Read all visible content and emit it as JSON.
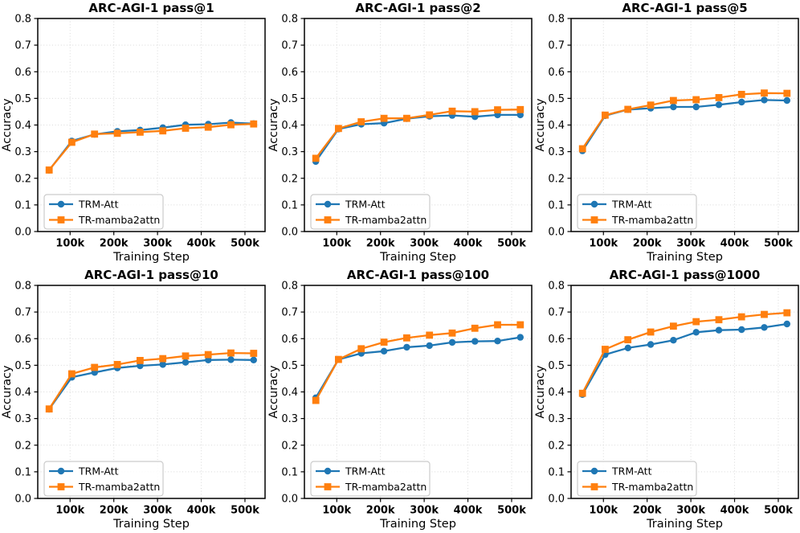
{
  "figure": {
    "xlabel": "Training Step",
    "ylabel": "Accuracy",
    "legend": [
      {
        "label": "TRM-Att",
        "color": "#1f77b4",
        "marker": "circle"
      },
      {
        "label": "TR-mamba2attn",
        "color": "#ff7f0e",
        "marker": "square"
      }
    ],
    "colors": {
      "blue": "#1f77b4",
      "orange": "#ff7f0e",
      "grid": "#bbbbbb",
      "spine": "#000000"
    }
  },
  "chart_data": [
    {
      "type": "line",
      "title": "ARC-AGI-1 pass@1",
      "xlabel": "Training Step",
      "ylabel": "Accuracy",
      "x": [
        52000,
        104000,
        156000,
        208000,
        260000,
        312000,
        364000,
        416000,
        468000,
        520000
      ],
      "xlim": [
        26000,
        546000
      ],
      "ylim": [
        0.0,
        0.8
      ],
      "grid": true,
      "legend_position": "lower left",
      "xticks": [
        {
          "value": 100000,
          "label": "100k"
        },
        {
          "value": 200000,
          "label": "200k"
        },
        {
          "value": 300000,
          "label": "300k"
        },
        {
          "value": 400000,
          "label": "400k"
        },
        {
          "value": 500000,
          "label": "500k"
        }
      ],
      "yticks": [
        {
          "value": 0.0,
          "label": "0.0"
        },
        {
          "value": 0.1,
          "label": "0.1"
        },
        {
          "value": 0.2,
          "label": "0.2"
        },
        {
          "value": 0.3,
          "label": "0.3"
        },
        {
          "value": 0.4,
          "label": "0.4"
        },
        {
          "value": 0.5,
          "label": "0.5"
        },
        {
          "value": 0.6,
          "label": "0.6"
        },
        {
          "value": 0.7,
          "label": "0.7"
        },
        {
          "value": 0.8,
          "label": "0.8"
        }
      ],
      "series": [
        {
          "name": "TRM-Att",
          "color": "#1f77b4",
          "marker": "circle",
          "values": [
            0.23,
            0.34,
            0.365,
            0.376,
            0.381,
            0.39,
            0.401,
            0.403,
            0.409,
            0.405
          ]
        },
        {
          "name": "TR-mamba2attn",
          "color": "#ff7f0e",
          "marker": "square",
          "values": [
            0.231,
            0.335,
            0.366,
            0.369,
            0.373,
            0.378,
            0.388,
            0.392,
            0.401,
            0.404
          ]
        }
      ]
    },
    {
      "type": "line",
      "title": "ARC-AGI-1 pass@2",
      "xlabel": "Training Step",
      "ylabel": "Accuracy",
      "x": [
        52000,
        104000,
        156000,
        208000,
        260000,
        312000,
        364000,
        416000,
        468000,
        520000
      ],
      "xlim": [
        26000,
        546000
      ],
      "ylim": [
        0.0,
        0.8
      ],
      "grid": true,
      "legend_position": "lower left",
      "xticks": [
        {
          "value": 100000,
          "label": "100k"
        },
        {
          "value": 200000,
          "label": "200k"
        },
        {
          "value": 300000,
          "label": "300k"
        },
        {
          "value": 400000,
          "label": "400k"
        },
        {
          "value": 500000,
          "label": "500k"
        }
      ],
      "yticks": [
        {
          "value": 0.0,
          "label": "0.0"
        },
        {
          "value": 0.1,
          "label": "0.1"
        },
        {
          "value": 0.2,
          "label": "0.2"
        },
        {
          "value": 0.3,
          "label": "0.3"
        },
        {
          "value": 0.4,
          "label": "0.4"
        },
        {
          "value": 0.5,
          "label": "0.5"
        },
        {
          "value": 0.6,
          "label": "0.6"
        },
        {
          "value": 0.7,
          "label": "0.7"
        },
        {
          "value": 0.8,
          "label": "0.8"
        }
      ],
      "series": [
        {
          "name": "TRM-Att",
          "color": "#1f77b4",
          "marker": "circle",
          "values": [
            0.263,
            0.385,
            0.403,
            0.407,
            0.424,
            0.433,
            0.436,
            0.431,
            0.438,
            0.438
          ]
        },
        {
          "name": "TR-mamba2attn",
          "color": "#ff7f0e",
          "marker": "square",
          "values": [
            0.275,
            0.387,
            0.412,
            0.425,
            0.425,
            0.438,
            0.452,
            0.45,
            0.457,
            0.458
          ]
        }
      ]
    },
    {
      "type": "line",
      "title": "ARC-AGI-1 pass@5",
      "xlabel": "Training Step",
      "ylabel": "Accuracy",
      "x": [
        52000,
        104000,
        156000,
        208000,
        260000,
        312000,
        364000,
        416000,
        468000,
        520000
      ],
      "xlim": [
        26000,
        546000
      ],
      "ylim": [
        0.0,
        0.8
      ],
      "grid": true,
      "legend_position": "lower left",
      "xticks": [
        {
          "value": 100000,
          "label": "100k"
        },
        {
          "value": 200000,
          "label": "200k"
        },
        {
          "value": 300000,
          "label": "300k"
        },
        {
          "value": 400000,
          "label": "400k"
        },
        {
          "value": 500000,
          "label": "500k"
        }
      ],
      "yticks": [
        {
          "value": 0.0,
          "label": "0.0"
        },
        {
          "value": 0.1,
          "label": "0.1"
        },
        {
          "value": 0.2,
          "label": "0.2"
        },
        {
          "value": 0.3,
          "label": "0.3"
        },
        {
          "value": 0.4,
          "label": "0.4"
        },
        {
          "value": 0.5,
          "label": "0.5"
        },
        {
          "value": 0.6,
          "label": "0.6"
        },
        {
          "value": 0.7,
          "label": "0.7"
        },
        {
          "value": 0.8,
          "label": "0.8"
        }
      ],
      "series": [
        {
          "name": "TRM-Att",
          "color": "#1f77b4",
          "marker": "circle",
          "values": [
            0.303,
            0.435,
            0.458,
            0.463,
            0.468,
            0.468,
            0.476,
            0.486,
            0.494,
            0.492
          ]
        },
        {
          "name": "TR-mamba2attn",
          "color": "#ff7f0e",
          "marker": "square",
          "values": [
            0.311,
            0.437,
            0.459,
            0.475,
            0.492,
            0.495,
            0.503,
            0.515,
            0.52,
            0.519
          ]
        }
      ]
    },
    {
      "type": "line",
      "title": "ARC-AGI-1 pass@10",
      "xlabel": "Training Step",
      "ylabel": "Accuracy",
      "x": [
        52000,
        104000,
        156000,
        208000,
        260000,
        312000,
        364000,
        416000,
        468000,
        520000
      ],
      "xlim": [
        26000,
        546000
      ],
      "ylim": [
        0.0,
        0.8
      ],
      "grid": true,
      "legend_position": "lower left",
      "xticks": [
        {
          "value": 100000,
          "label": "100k"
        },
        {
          "value": 200000,
          "label": "200k"
        },
        {
          "value": 300000,
          "label": "300k"
        },
        {
          "value": 400000,
          "label": "400k"
        },
        {
          "value": 500000,
          "label": "500k"
        }
      ],
      "yticks": [
        {
          "value": 0.0,
          "label": "0.0"
        },
        {
          "value": 0.1,
          "label": "0.1"
        },
        {
          "value": 0.2,
          "label": "0.2"
        },
        {
          "value": 0.3,
          "label": "0.3"
        },
        {
          "value": 0.4,
          "label": "0.4"
        },
        {
          "value": 0.5,
          "label": "0.5"
        },
        {
          "value": 0.6,
          "label": "0.6"
        },
        {
          "value": 0.7,
          "label": "0.7"
        },
        {
          "value": 0.8,
          "label": "0.8"
        }
      ],
      "series": [
        {
          "name": "TRM-Att",
          "color": "#1f77b4",
          "marker": "circle",
          "values": [
            0.335,
            0.455,
            0.473,
            0.49,
            0.498,
            0.503,
            0.511,
            0.52,
            0.521,
            0.52
          ]
        },
        {
          "name": "TR-mamba2attn",
          "color": "#ff7f0e",
          "marker": "square",
          "values": [
            0.336,
            0.468,
            0.492,
            0.503,
            0.518,
            0.525,
            0.535,
            0.54,
            0.546,
            0.545
          ]
        }
      ]
    },
    {
      "type": "line",
      "title": "ARC-AGI-1 pass@100",
      "xlabel": "Training Step",
      "ylabel": "Accuracy",
      "x": [
        52000,
        104000,
        156000,
        208000,
        260000,
        312000,
        364000,
        416000,
        468000,
        520000
      ],
      "xlim": [
        26000,
        546000
      ],
      "ylim": [
        0.0,
        0.8
      ],
      "grid": true,
      "legend_position": "lower left",
      "xticks": [
        {
          "value": 100000,
          "label": "100k"
        },
        {
          "value": 200000,
          "label": "200k"
        },
        {
          "value": 300000,
          "label": "300k"
        },
        {
          "value": 400000,
          "label": "400k"
        },
        {
          "value": 500000,
          "label": "500k"
        }
      ],
      "yticks": [
        {
          "value": 0.0,
          "label": "0.0"
        },
        {
          "value": 0.1,
          "label": "0.1"
        },
        {
          "value": 0.2,
          "label": "0.2"
        },
        {
          "value": 0.3,
          "label": "0.3"
        },
        {
          "value": 0.4,
          "label": "0.4"
        },
        {
          "value": 0.5,
          "label": "0.5"
        },
        {
          "value": 0.6,
          "label": "0.6"
        },
        {
          "value": 0.7,
          "label": "0.7"
        },
        {
          "value": 0.8,
          "label": "0.8"
        }
      ],
      "series": [
        {
          "name": "TRM-Att",
          "color": "#1f77b4",
          "marker": "circle",
          "values": [
            0.378,
            0.522,
            0.545,
            0.553,
            0.568,
            0.574,
            0.586,
            0.59,
            0.591,
            0.605
          ]
        },
        {
          "name": "TR-mamba2attn",
          "color": "#ff7f0e",
          "marker": "square",
          "values": [
            0.368,
            0.522,
            0.562,
            0.587,
            0.603,
            0.613,
            0.621,
            0.639,
            0.652,
            0.652
          ]
        }
      ]
    },
    {
      "type": "line",
      "title": "ARC-AGI-1 pass@1000",
      "xlabel": "Training Step",
      "ylabel": "Accuracy",
      "x": [
        52000,
        104000,
        156000,
        208000,
        260000,
        312000,
        364000,
        416000,
        468000,
        520000
      ],
      "xlim": [
        26000,
        546000
      ],
      "ylim": [
        0.0,
        0.8
      ],
      "grid": true,
      "legend_position": "lower left",
      "xticks": [
        {
          "value": 100000,
          "label": "100k"
        },
        {
          "value": 200000,
          "label": "200k"
        },
        {
          "value": 300000,
          "label": "300k"
        },
        {
          "value": 400000,
          "label": "400k"
        },
        {
          "value": 500000,
          "label": "500k"
        }
      ],
      "yticks": [
        {
          "value": 0.0,
          "label": "0.0"
        },
        {
          "value": 0.1,
          "label": "0.1"
        },
        {
          "value": 0.2,
          "label": "0.2"
        },
        {
          "value": 0.3,
          "label": "0.3"
        },
        {
          "value": 0.4,
          "label": "0.4"
        },
        {
          "value": 0.5,
          "label": "0.5"
        },
        {
          "value": 0.6,
          "label": "0.6"
        },
        {
          "value": 0.7,
          "label": "0.7"
        },
        {
          "value": 0.8,
          "label": "0.8"
        }
      ],
      "series": [
        {
          "name": "TRM-Att",
          "color": "#1f77b4",
          "marker": "circle",
          "values": [
            0.39,
            0.54,
            0.565,
            0.578,
            0.594,
            0.624,
            0.632,
            0.634,
            0.642,
            0.655
          ]
        },
        {
          "name": "TR-mamba2attn",
          "color": "#ff7f0e",
          "marker": "square",
          "values": [
            0.395,
            0.56,
            0.596,
            0.625,
            0.647,
            0.664,
            0.671,
            0.682,
            0.691,
            0.697
          ]
        }
      ]
    }
  ]
}
